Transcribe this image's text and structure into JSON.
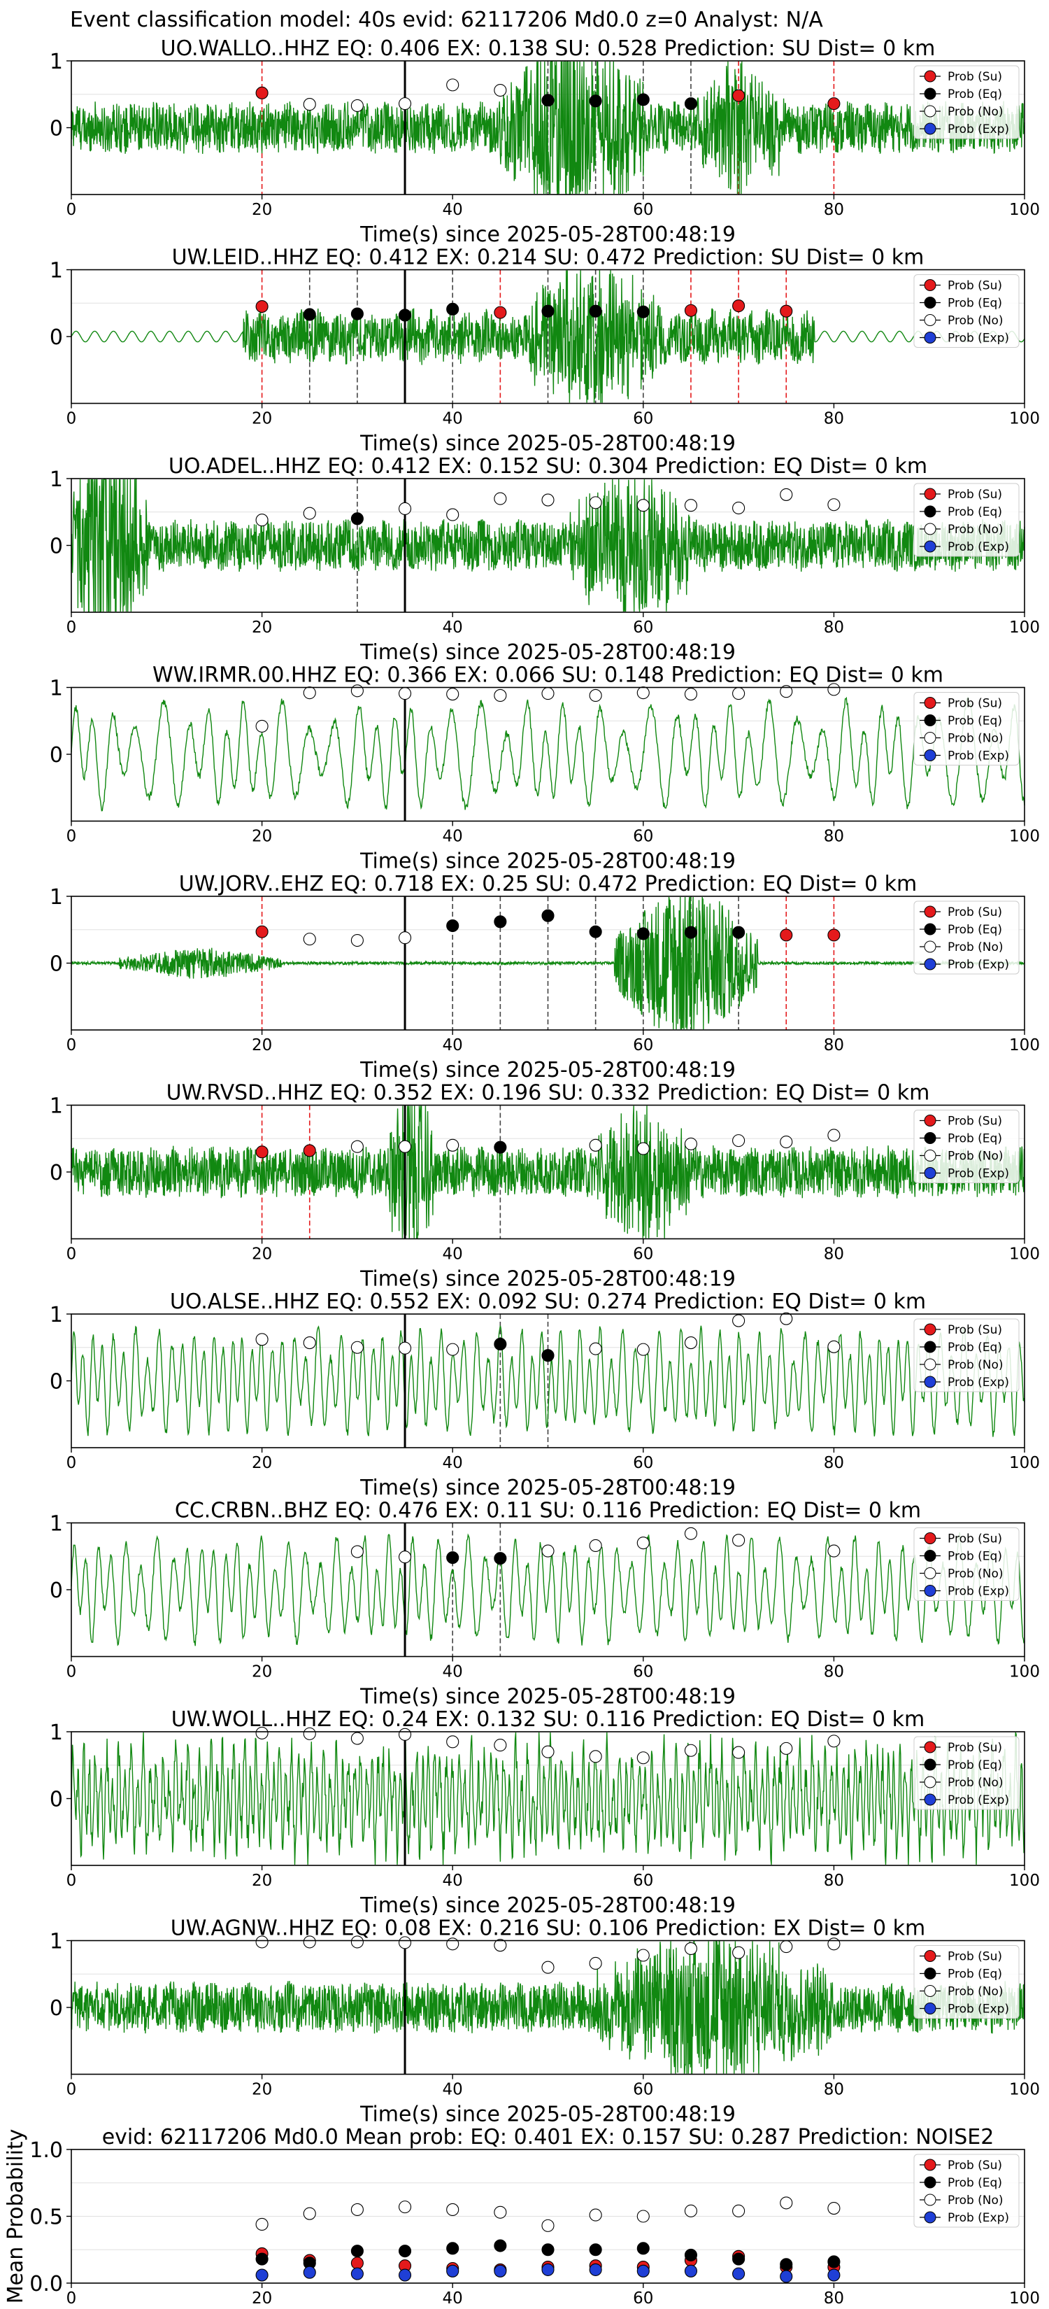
{
  "suptitle": "Event classification model: 40s evid: 62117206 Md0.0 z=0 Analyst: N/A",
  "legend": [
    "Prob (Su)",
    "Prob (Eq)",
    "Prob (No)",
    "Prob (Exp)"
  ],
  "colors": {
    "su": "#e41a1c",
    "eq": "#000000",
    "no": "#ffffff",
    "exp": "#1f3fd6",
    "trace": "#118811",
    "red_line": "#e41a1c",
    "black_line": "#444444"
  },
  "chart_data": [
    {
      "type": "line",
      "title": "UO.WALLO..HHZ   EQ: 0.406   EX: 0.138   SU: 0.528   Prediction: SU    Dist= 0 km",
      "xlabel": "Time(s) since 2025-05-28T00:48:19",
      "xlim": [
        0,
        100
      ],
      "xticks": [
        "0",
        "20",
        "40",
        "60",
        "80",
        "100"
      ],
      "ylim": [
        -1,
        1
      ],
      "yticks": [
        "0",
        "1"
      ],
      "trace": {
        "style": "noise",
        "events": [
          [
            45,
            60,
            2.2
          ],
          [
            65,
            75,
            1.4
          ]
        ]
      },
      "event_marker_x": 35,
      "points": [
        {
          "x": 20,
          "y": 0.52,
          "c": "su"
        },
        {
          "x": 25,
          "y": 0.35,
          "c": "no"
        },
        {
          "x": 30,
          "y": 0.33,
          "c": "no"
        },
        {
          "x": 35,
          "y": 0.36,
          "c": "no"
        },
        {
          "x": 40,
          "y": 0.64,
          "c": "no"
        },
        {
          "x": 45,
          "y": 0.56,
          "c": "no"
        },
        {
          "x": 50,
          "y": 0.41,
          "c": "eq"
        },
        {
          "x": 55,
          "y": 0.4,
          "c": "eq"
        },
        {
          "x": 60,
          "y": 0.42,
          "c": "eq"
        },
        {
          "x": 65,
          "y": 0.36,
          "c": "eq"
        },
        {
          "x": 70,
          "y": 0.48,
          "c": "su"
        },
        {
          "x": 80,
          "y": 0.36,
          "c": "su"
        }
      ]
    },
    {
      "type": "line",
      "title": "UW.LEID..HHZ   EQ: 0.412   EX: 0.214   SU: 0.472   Prediction: SU    Dist= 0 km",
      "xlabel": "Time(s) since 2025-05-28T00:48:19",
      "xlim": [
        0,
        100
      ],
      "xticks": [
        "0",
        "20",
        "40",
        "60",
        "80",
        "100"
      ],
      "ylim": [
        -1,
        1
      ],
      "yticks": [
        "0",
        "1"
      ],
      "trace": {
        "style": "burst",
        "start": 18,
        "end": 78,
        "events": [
          [
            48,
            62,
            1.6
          ]
        ]
      },
      "event_marker_x": 35,
      "points": [
        {
          "x": 20,
          "y": 0.45,
          "c": "su"
        },
        {
          "x": 25,
          "y": 0.33,
          "c": "eq"
        },
        {
          "x": 30,
          "y": 0.34,
          "c": "eq"
        },
        {
          "x": 35,
          "y": 0.32,
          "c": "eq"
        },
        {
          "x": 40,
          "y": 0.41,
          "c": "eq"
        },
        {
          "x": 45,
          "y": 0.36,
          "c": "su"
        },
        {
          "x": 50,
          "y": 0.38,
          "c": "eq"
        },
        {
          "x": 55,
          "y": 0.38,
          "c": "eq"
        },
        {
          "x": 60,
          "y": 0.37,
          "c": "eq"
        },
        {
          "x": 65,
          "y": 0.39,
          "c": "su"
        },
        {
          "x": 70,
          "y": 0.46,
          "c": "su"
        },
        {
          "x": 75,
          "y": 0.38,
          "c": "su"
        }
      ]
    },
    {
      "type": "line",
      "title": "UO.ADEL..HHZ   EQ: 0.412   EX: 0.152   SU: 0.304   Prediction: EQ    Dist= 0 km",
      "xlabel": "Time(s) since 2025-05-28T00:48:19",
      "xlim": [
        0,
        100
      ],
      "xticks": [
        "0",
        "20",
        "40",
        "60",
        "80",
        "100"
      ],
      "ylim": [
        -1,
        1
      ],
      "yticks": [
        "0",
        "1"
      ],
      "trace": {
        "style": "noise",
        "events": [
          [
            0,
            8,
            3.0
          ],
          [
            52,
            65,
            1.6
          ]
        ]
      },
      "event_marker_x": 35,
      "points": [
        {
          "x": 20,
          "y": 0.38,
          "c": "no"
        },
        {
          "x": 25,
          "y": 0.48,
          "c": "no"
        },
        {
          "x": 30,
          "y": 0.4,
          "c": "eq"
        },
        {
          "x": 35,
          "y": 0.55,
          "c": "no"
        },
        {
          "x": 40,
          "y": 0.46,
          "c": "no"
        },
        {
          "x": 45,
          "y": 0.7,
          "c": "no"
        },
        {
          "x": 50,
          "y": 0.68,
          "c": "no"
        },
        {
          "x": 55,
          "y": 0.64,
          "c": "no"
        },
        {
          "x": 60,
          "y": 0.6,
          "c": "no"
        },
        {
          "x": 65,
          "y": 0.6,
          "c": "no"
        },
        {
          "x": 70,
          "y": 0.56,
          "c": "no"
        },
        {
          "x": 75,
          "y": 0.76,
          "c": "no"
        },
        {
          "x": 80,
          "y": 0.61,
          "c": "no"
        }
      ]
    },
    {
      "type": "line",
      "title": "WW.IRMR.00.HHZ   EQ: 0.366   EX: 0.066   SU: 0.148   Prediction: EQ    Dist= 0 km",
      "xlabel": "Time(s) since 2025-05-28T00:48:19",
      "xlim": [
        0,
        100
      ],
      "xticks": [
        "0",
        "20",
        "40",
        "60",
        "80",
        "100"
      ],
      "ylim": [
        -1,
        1
      ],
      "yticks": [
        "0",
        "1"
      ],
      "trace": {
        "style": "wave",
        "freq": 0.45
      },
      "event_marker_x": 35,
      "points": [
        {
          "x": 20,
          "y": 0.42,
          "c": "no"
        },
        {
          "x": 25,
          "y": 0.92,
          "c": "no"
        },
        {
          "x": 30,
          "y": 0.95,
          "c": "no"
        },
        {
          "x": 35,
          "y": 0.91,
          "c": "no"
        },
        {
          "x": 40,
          "y": 0.9,
          "c": "no"
        },
        {
          "x": 45,
          "y": 0.88,
          "c": "no"
        },
        {
          "x": 50,
          "y": 0.91,
          "c": "no"
        },
        {
          "x": 55,
          "y": 0.88,
          "c": "no"
        },
        {
          "x": 60,
          "y": 0.92,
          "c": "no"
        },
        {
          "x": 65,
          "y": 0.9,
          "c": "no"
        },
        {
          "x": 70,
          "y": 0.91,
          "c": "no"
        },
        {
          "x": 75,
          "y": 0.94,
          "c": "no"
        },
        {
          "x": 80,
          "y": 0.97,
          "c": "no"
        }
      ]
    },
    {
      "type": "line",
      "title": "UW.JORV..EHZ   EQ: 0.718   EX: 0.25   SU: 0.472   Prediction: EQ    Dist= 0 km",
      "xlabel": "Time(s) since 2025-05-28T00:48:19",
      "xlim": [
        0,
        100
      ],
      "xticks": [
        "0",
        "20",
        "40",
        "60",
        "80",
        "100"
      ],
      "ylim": [
        -1,
        1
      ],
      "yticks": [
        "0",
        "1"
      ],
      "trace": {
        "style": "quiet",
        "events": [
          [
            5,
            22,
            0.35
          ],
          [
            57,
            72,
            2.0
          ]
        ]
      },
      "event_marker_x": 35,
      "points": [
        {
          "x": 20,
          "y": 0.47,
          "c": "su"
        },
        {
          "x": 25,
          "y": 0.36,
          "c": "no"
        },
        {
          "x": 30,
          "y": 0.34,
          "c": "no"
        },
        {
          "x": 35,
          "y": 0.38,
          "c": "no"
        },
        {
          "x": 40,
          "y": 0.56,
          "c": "eq"
        },
        {
          "x": 45,
          "y": 0.62,
          "c": "eq"
        },
        {
          "x": 50,
          "y": 0.71,
          "c": "eq"
        },
        {
          "x": 55,
          "y": 0.47,
          "c": "eq"
        },
        {
          "x": 60,
          "y": 0.44,
          "c": "eq"
        },
        {
          "x": 65,
          "y": 0.46,
          "c": "eq"
        },
        {
          "x": 70,
          "y": 0.46,
          "c": "eq"
        },
        {
          "x": 75,
          "y": 0.42,
          "c": "su"
        },
        {
          "x": 80,
          "y": 0.42,
          "c": "su"
        }
      ]
    },
    {
      "type": "line",
      "title": "UW.RVSD..HHZ   EQ: 0.352   EX: 0.196   SU: 0.332   Prediction: EQ    Dist= 0 km",
      "xlabel": "Time(s) since 2025-05-28T00:48:19",
      "xlim": [
        0,
        100
      ],
      "xticks": [
        "0",
        "20",
        "40",
        "60",
        "80",
        "100"
      ],
      "ylim": [
        -1,
        1
      ],
      "yticks": [
        "0",
        "1"
      ],
      "trace": {
        "style": "noise",
        "events": [
          [
            33,
            38,
            2.2
          ],
          [
            55,
            65,
            1.5
          ]
        ]
      },
      "event_marker_x": 35,
      "points": [
        {
          "x": 20,
          "y": 0.3,
          "c": "su"
        },
        {
          "x": 25,
          "y": 0.32,
          "c": "su"
        },
        {
          "x": 30,
          "y": 0.38,
          "c": "no"
        },
        {
          "x": 35,
          "y": 0.38,
          "c": "no"
        },
        {
          "x": 40,
          "y": 0.4,
          "c": "no"
        },
        {
          "x": 45,
          "y": 0.37,
          "c": "eq"
        },
        {
          "x": 55,
          "y": 0.4,
          "c": "no"
        },
        {
          "x": 60,
          "y": 0.35,
          "c": "no"
        },
        {
          "x": 65,
          "y": 0.42,
          "c": "no"
        },
        {
          "x": 70,
          "y": 0.47,
          "c": "no"
        },
        {
          "x": 75,
          "y": 0.45,
          "c": "no"
        },
        {
          "x": 80,
          "y": 0.55,
          "c": "no"
        }
      ]
    },
    {
      "type": "line",
      "title": "UO.ALSE..HHZ   EQ: 0.552   EX: 0.092   SU: 0.274   Prediction: EQ    Dist= 0 km",
      "xlabel": "Time(s) since 2025-05-28T00:48:19",
      "xlim": [
        0,
        100
      ],
      "xticks": [
        "0",
        "20",
        "40",
        "60",
        "80",
        "100"
      ],
      "ylim": [
        -1,
        1
      ],
      "yticks": [
        "0",
        "1"
      ],
      "trace": {
        "style": "wave",
        "freq": 0.9
      },
      "event_marker_x": 35,
      "points": [
        {
          "x": 20,
          "y": 0.62,
          "c": "no"
        },
        {
          "x": 25,
          "y": 0.57,
          "c": "no"
        },
        {
          "x": 30,
          "y": 0.5,
          "c": "no"
        },
        {
          "x": 35,
          "y": 0.49,
          "c": "no"
        },
        {
          "x": 40,
          "y": 0.47,
          "c": "no"
        },
        {
          "x": 45,
          "y": 0.55,
          "c": "eq"
        },
        {
          "x": 50,
          "y": 0.38,
          "c": "eq"
        },
        {
          "x": 55,
          "y": 0.48,
          "c": "no"
        },
        {
          "x": 60,
          "y": 0.47,
          "c": "no"
        },
        {
          "x": 65,
          "y": 0.57,
          "c": "no"
        },
        {
          "x": 70,
          "y": 0.9,
          "c": "no"
        },
        {
          "x": 75,
          "y": 0.93,
          "c": "no"
        },
        {
          "x": 80,
          "y": 0.51,
          "c": "no"
        }
      ]
    },
    {
      "type": "line",
      "title": "CC.CRBN..BHZ   EQ: 0.476   EX: 0.11   SU: 0.116   Prediction: EQ    Dist= 0 km",
      "xlabel": "Time(s) since 2025-05-28T00:48:19",
      "xlim": [
        0,
        100
      ],
      "xticks": [
        "0",
        "20",
        "40",
        "60",
        "80",
        "100"
      ],
      "ylim": [
        -1,
        1
      ],
      "yticks": [
        "0",
        "1"
      ],
      "trace": {
        "style": "wave",
        "freq": 0.7
      },
      "event_marker_x": 35,
      "points": [
        {
          "x": 30,
          "y": 0.57,
          "c": "no"
        },
        {
          "x": 35,
          "y": 0.49,
          "c": "no"
        },
        {
          "x": 40,
          "y": 0.48,
          "c": "eq"
        },
        {
          "x": 45,
          "y": 0.47,
          "c": "eq"
        },
        {
          "x": 50,
          "y": 0.58,
          "c": "no"
        },
        {
          "x": 55,
          "y": 0.66,
          "c": "no"
        },
        {
          "x": 60,
          "y": 0.7,
          "c": "no"
        },
        {
          "x": 65,
          "y": 0.84,
          "c": "no"
        },
        {
          "x": 70,
          "y": 0.74,
          "c": "no"
        },
        {
          "x": 80,
          "y": 0.58,
          "c": "no"
        }
      ]
    },
    {
      "type": "line",
      "title": "UW.WOLL..HHZ   EQ: 0.24   EX: 0.132   SU: 0.116   Prediction: EQ    Dist= 0 km",
      "xlabel": "Time(s) since 2025-05-28T00:48:19",
      "xlim": [
        0,
        100
      ],
      "xticks": [
        "0",
        "20",
        "40",
        "60",
        "80",
        "100"
      ],
      "ylim": [
        -1,
        1
      ],
      "yticks": [
        "0",
        "1"
      ],
      "trace": {
        "style": "wave",
        "freq": 1.6,
        "noisy": true
      },
      "event_marker_x": 35,
      "points": [
        {
          "x": 20,
          "y": 0.98,
          "c": "no"
        },
        {
          "x": 25,
          "y": 0.97,
          "c": "no"
        },
        {
          "x": 30,
          "y": 0.9,
          "c": "no"
        },
        {
          "x": 35,
          "y": 0.96,
          "c": "no"
        },
        {
          "x": 40,
          "y": 0.85,
          "c": "no"
        },
        {
          "x": 45,
          "y": 0.8,
          "c": "no"
        },
        {
          "x": 50,
          "y": 0.7,
          "c": "no"
        },
        {
          "x": 55,
          "y": 0.63,
          "c": "no"
        },
        {
          "x": 60,
          "y": 0.61,
          "c": "no"
        },
        {
          "x": 65,
          "y": 0.72,
          "c": "no"
        },
        {
          "x": 70,
          "y": 0.69,
          "c": "no"
        },
        {
          "x": 75,
          "y": 0.75,
          "c": "no"
        },
        {
          "x": 80,
          "y": 0.86,
          "c": "no"
        }
      ]
    },
    {
      "type": "line",
      "title": "UW.AGNW..HHZ   EQ: 0.08   EX: 0.216   SU: 0.106   Prediction: EX    Dist= 0 km",
      "xlabel": "Time(s) since 2025-05-28T00:48:19",
      "xlim": [
        0,
        100
      ],
      "xticks": [
        "0",
        "20",
        "40",
        "60",
        "80",
        "100"
      ],
      "ylim": [
        -1,
        1
      ],
      "yticks": [
        "0",
        "1"
      ],
      "trace": {
        "style": "noise",
        "events": [
          [
            55,
            80,
            1.6
          ]
        ]
      },
      "event_marker_x": 35,
      "points": [
        {
          "x": 20,
          "y": 0.98,
          "c": "no"
        },
        {
          "x": 25,
          "y": 0.98,
          "c": "no"
        },
        {
          "x": 30,
          "y": 0.98,
          "c": "no"
        },
        {
          "x": 35,
          "y": 0.97,
          "c": "no"
        },
        {
          "x": 40,
          "y": 0.95,
          "c": "no"
        },
        {
          "x": 45,
          "y": 0.93,
          "c": "no"
        },
        {
          "x": 50,
          "y": 0.6,
          "c": "no"
        },
        {
          "x": 55,
          "y": 0.66,
          "c": "no"
        },
        {
          "x": 60,
          "y": 0.78,
          "c": "no"
        },
        {
          "x": 65,
          "y": 0.88,
          "c": "no"
        },
        {
          "x": 70,
          "y": 0.82,
          "c": "no"
        },
        {
          "x": 75,
          "y": 0.91,
          "c": "no"
        },
        {
          "x": 80,
          "y": 0.95,
          "c": "no"
        }
      ]
    },
    {
      "type": "scatter",
      "title": "evid: 62117206  Md0.0    Mean prob:   EQ: 0.401  EX: 0.157  SU: 0.287   Prediction: NOISE2",
      "ylabel": "Mean Probability",
      "xlim": [
        0,
        100
      ],
      "xticks": [
        "0",
        "20",
        "40",
        "60",
        "80",
        "100"
      ],
      "ylim": [
        0,
        1
      ],
      "yticks": [
        "0.0",
        "0.5",
        "1.0"
      ],
      "x": [
        20,
        25,
        30,
        35,
        40,
        45,
        50,
        55,
        60,
        65,
        70,
        75,
        80
      ],
      "series": [
        {
          "name": "Prob (No)",
          "key": "no",
          "values": [
            0.44,
            0.52,
            0.55,
            0.57,
            0.55,
            0.53,
            0.43,
            0.51,
            0.5,
            0.54,
            0.54,
            0.6,
            0.56
          ]
        },
        {
          "name": "Prob (Su)",
          "key": "su",
          "values": [
            0.22,
            0.17,
            0.15,
            0.13,
            0.11,
            0.1,
            0.12,
            0.13,
            0.12,
            0.17,
            0.2,
            0.12,
            0.12
          ]
        },
        {
          "name": "Prob (Eq)",
          "key": "eq",
          "values": [
            0.18,
            0.15,
            0.24,
            0.24,
            0.26,
            0.28,
            0.25,
            0.25,
            0.26,
            0.21,
            0.18,
            0.14,
            0.16
          ]
        },
        {
          "name": "Prob (Exp)",
          "key": "exp",
          "values": [
            0.06,
            0.08,
            0.07,
            0.06,
            0.09,
            0.09,
            0.1,
            0.1,
            0.09,
            0.09,
            0.07,
            0.05,
            0.06
          ]
        }
      ]
    }
  ]
}
